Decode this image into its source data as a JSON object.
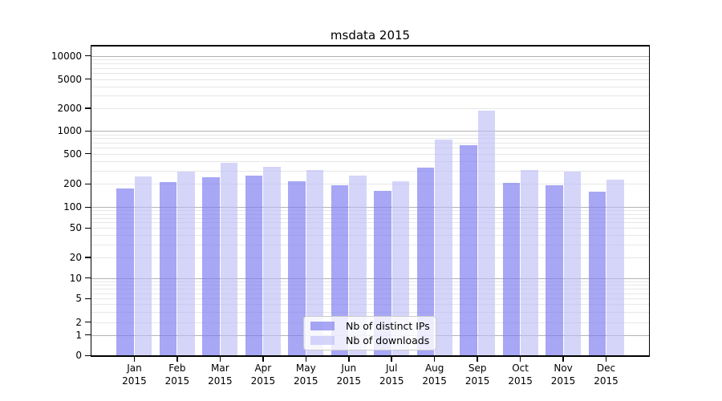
{
  "title": "msdata 2015",
  "year_label": "2015",
  "months": [
    "Jan",
    "Feb",
    "Mar",
    "Apr",
    "May",
    "Jun",
    "Jul",
    "Aug",
    "Sep",
    "Oct",
    "Nov",
    "Dec"
  ],
  "colors": {
    "bar_distinct_ips": "rgba(122,122,240,0.66)",
    "bar_downloads": "rgba(187,187,247,0.62)",
    "grid_major": "#b2b2b2",
    "grid_minor": "#e7e7e9",
    "axis": "#000000",
    "legend_border": "#cccccc"
  },
  "chart_data": {
    "type": "bar",
    "title": "msdata 2015",
    "categories": [
      "Jan 2015",
      "Feb 2015",
      "Mar 2015",
      "Apr 2015",
      "May 2015",
      "Jun 2015",
      "Jul 2015",
      "Aug 2015",
      "Sep 2015",
      "Oct 2015",
      "Nov 2015",
      "Dec 2015"
    ],
    "series": [
      {
        "name": "Nb of distinct IPs",
        "values": [
          175,
          210,
          245,
          255,
          216,
          194,
          163,
          330,
          650,
          207,
          192,
          157
        ]
      },
      {
        "name": "Nb of downloads",
        "values": [
          250,
          293,
          377,
          336,
          302,
          255,
          216,
          776,
          1850,
          303,
          292,
          226
        ]
      }
    ],
    "xlabel": "",
    "ylabel": "",
    "yscale": "log-with-zero-baseline",
    "yticks": [
      0,
      1,
      2,
      5,
      10,
      20,
      50,
      100,
      200,
      500,
      1000,
      2000,
      5000,
      10000
    ],
    "ylim": [
      0,
      14000
    ],
    "grid": true,
    "legend_position": "lower center inside plot"
  }
}
